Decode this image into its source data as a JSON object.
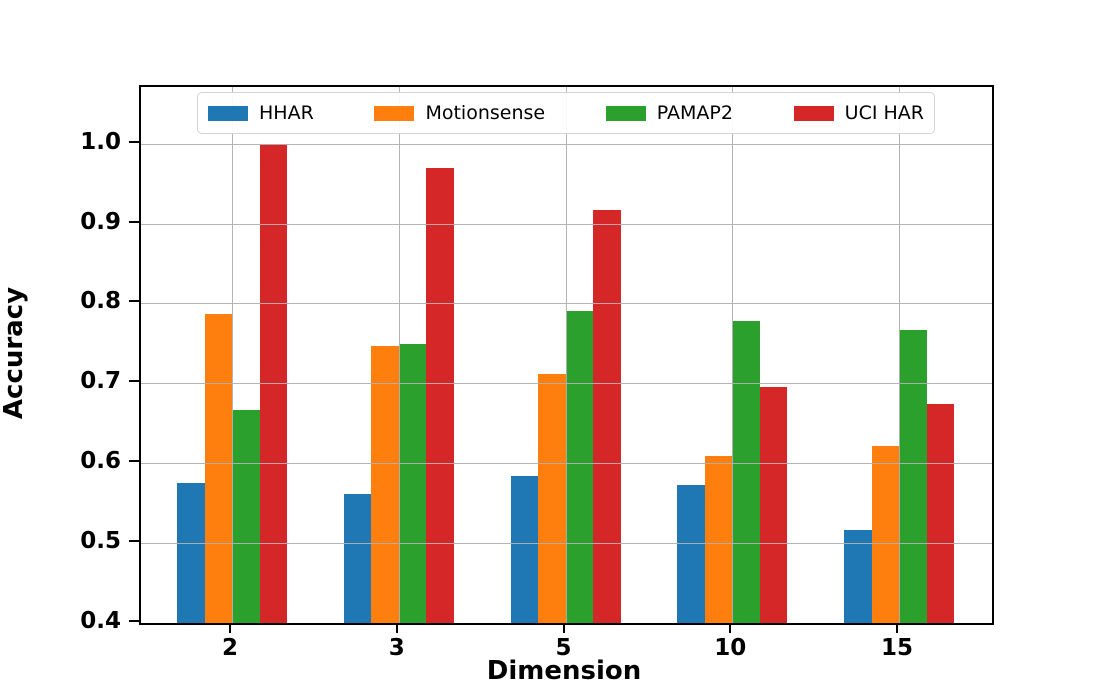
{
  "figure": {
    "background": "#ffffff"
  },
  "chart_data": {
    "type": "bar",
    "title": "",
    "xlabel": "Dimension",
    "ylabel": "Accuracy",
    "categories": [
      "2",
      "3",
      "5",
      "10",
      "15"
    ],
    "series": [
      {
        "name": "HHAR",
        "color": "#1f77b4",
        "values": [
          0.575,
          0.562,
          0.584,
          0.573,
          0.516
        ]
      },
      {
        "name": "Motionsense",
        "color": "#ff7f0e",
        "values": [
          0.787,
          0.747,
          0.712,
          0.609,
          0.622
        ]
      },
      {
        "name": "PAMAP2",
        "color": "#2ca02c",
        "values": [
          0.667,
          0.749,
          0.79,
          0.778,
          0.767
        ]
      },
      {
        "name": "UCI HAR",
        "color": "#d62728",
        "values": [
          1.0,
          0.969,
          0.917,
          0.695,
          0.674
        ]
      }
    ],
    "ylim": [
      0.4,
      1.071
    ],
    "yticks": [
      "0.4",
      "0.5",
      "0.6",
      "0.7",
      "0.8",
      "0.9",
      "1.0"
    ],
    "grid": true,
    "grid_color": "#b0b0b0",
    "legend_position": "upper-center-inside",
    "axis_color": "#000000"
  }
}
